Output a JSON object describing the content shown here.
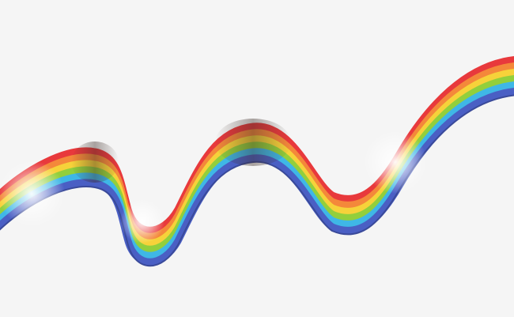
{
  "background": "#f5f5f5",
  "ribbon": {
    "bands": [
      "#e8393c",
      "#f4883a",
      "#f6d23a",
      "#92cf3c",
      "#3fb7e6",
      "#4a5fc4"
    ],
    "edge_color": "#3a4a9a",
    "fold_shadow": "#3a2a24",
    "highlight": "#ffffff"
  }
}
